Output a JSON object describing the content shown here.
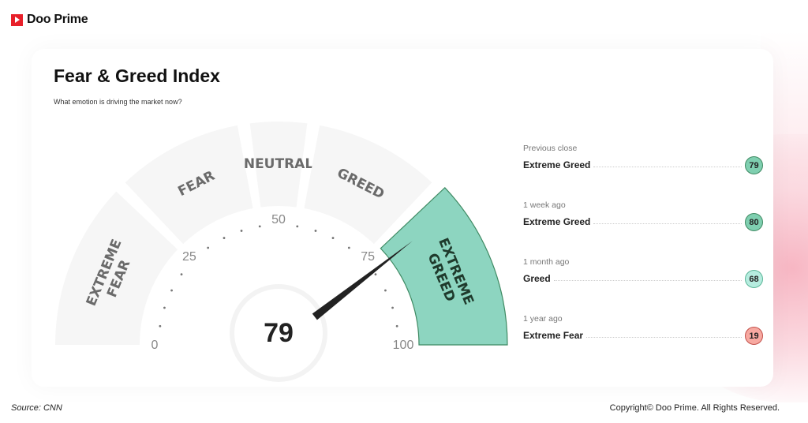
{
  "brand": {
    "name": "Doo Prime",
    "color": "#e8202a"
  },
  "header": {
    "title": "Fear & Greed Index",
    "subtitle": "What emotion is driving the market now?"
  },
  "chart_data": {
    "type": "gauge",
    "value": 79,
    "range": [
      0,
      100
    ],
    "ticks": [
      "0",
      "25",
      "50",
      "75",
      "100"
    ],
    "segments": [
      {
        "label": "EXTREME FEAR",
        "lines": [
          "EXTREME",
          "FEAR"
        ],
        "from": 0,
        "to": 25
      },
      {
        "label": "FEAR",
        "lines": [
          "FEAR"
        ],
        "from": 25,
        "to": 45
      },
      {
        "label": "NEUTRAL",
        "lines": [
          "NEUTRAL"
        ],
        "from": 45,
        "to": 55
      },
      {
        "label": "GREED",
        "lines": [
          "GREED"
        ],
        "from": 55,
        "to": 75
      },
      {
        "label": "EXTREME GREED",
        "lines": [
          "EXTREME",
          "GREED"
        ],
        "from": 75,
        "to": 100,
        "active": true
      }
    ],
    "colors": {
      "inactive": "#f6f6f6",
      "active": "#8dd5c0",
      "active_border": "#3f8a63",
      "needle": "#222222"
    }
  },
  "history": [
    {
      "when": "Previous close",
      "label": "Extreme Greed",
      "value": "79",
      "color": "#7fcfb0",
      "border": "#3f8a63"
    },
    {
      "when": "1 week ago",
      "label": "Extreme Greed",
      "value": "80",
      "color": "#7fcfb0",
      "border": "#3f8a63"
    },
    {
      "when": "1 month ago",
      "label": "Greed",
      "value": "68",
      "color": "#b6ecdf",
      "border": "#5ab597"
    },
    {
      "when": "1 year ago",
      "label": "Extreme Fear",
      "value": "19",
      "color": "#f7a9a1",
      "border": "#c2504a"
    }
  ],
  "footer": {
    "source": "Source: CNN",
    "copyright": "Copyright© Doo Prime. All Rights Reserved."
  }
}
